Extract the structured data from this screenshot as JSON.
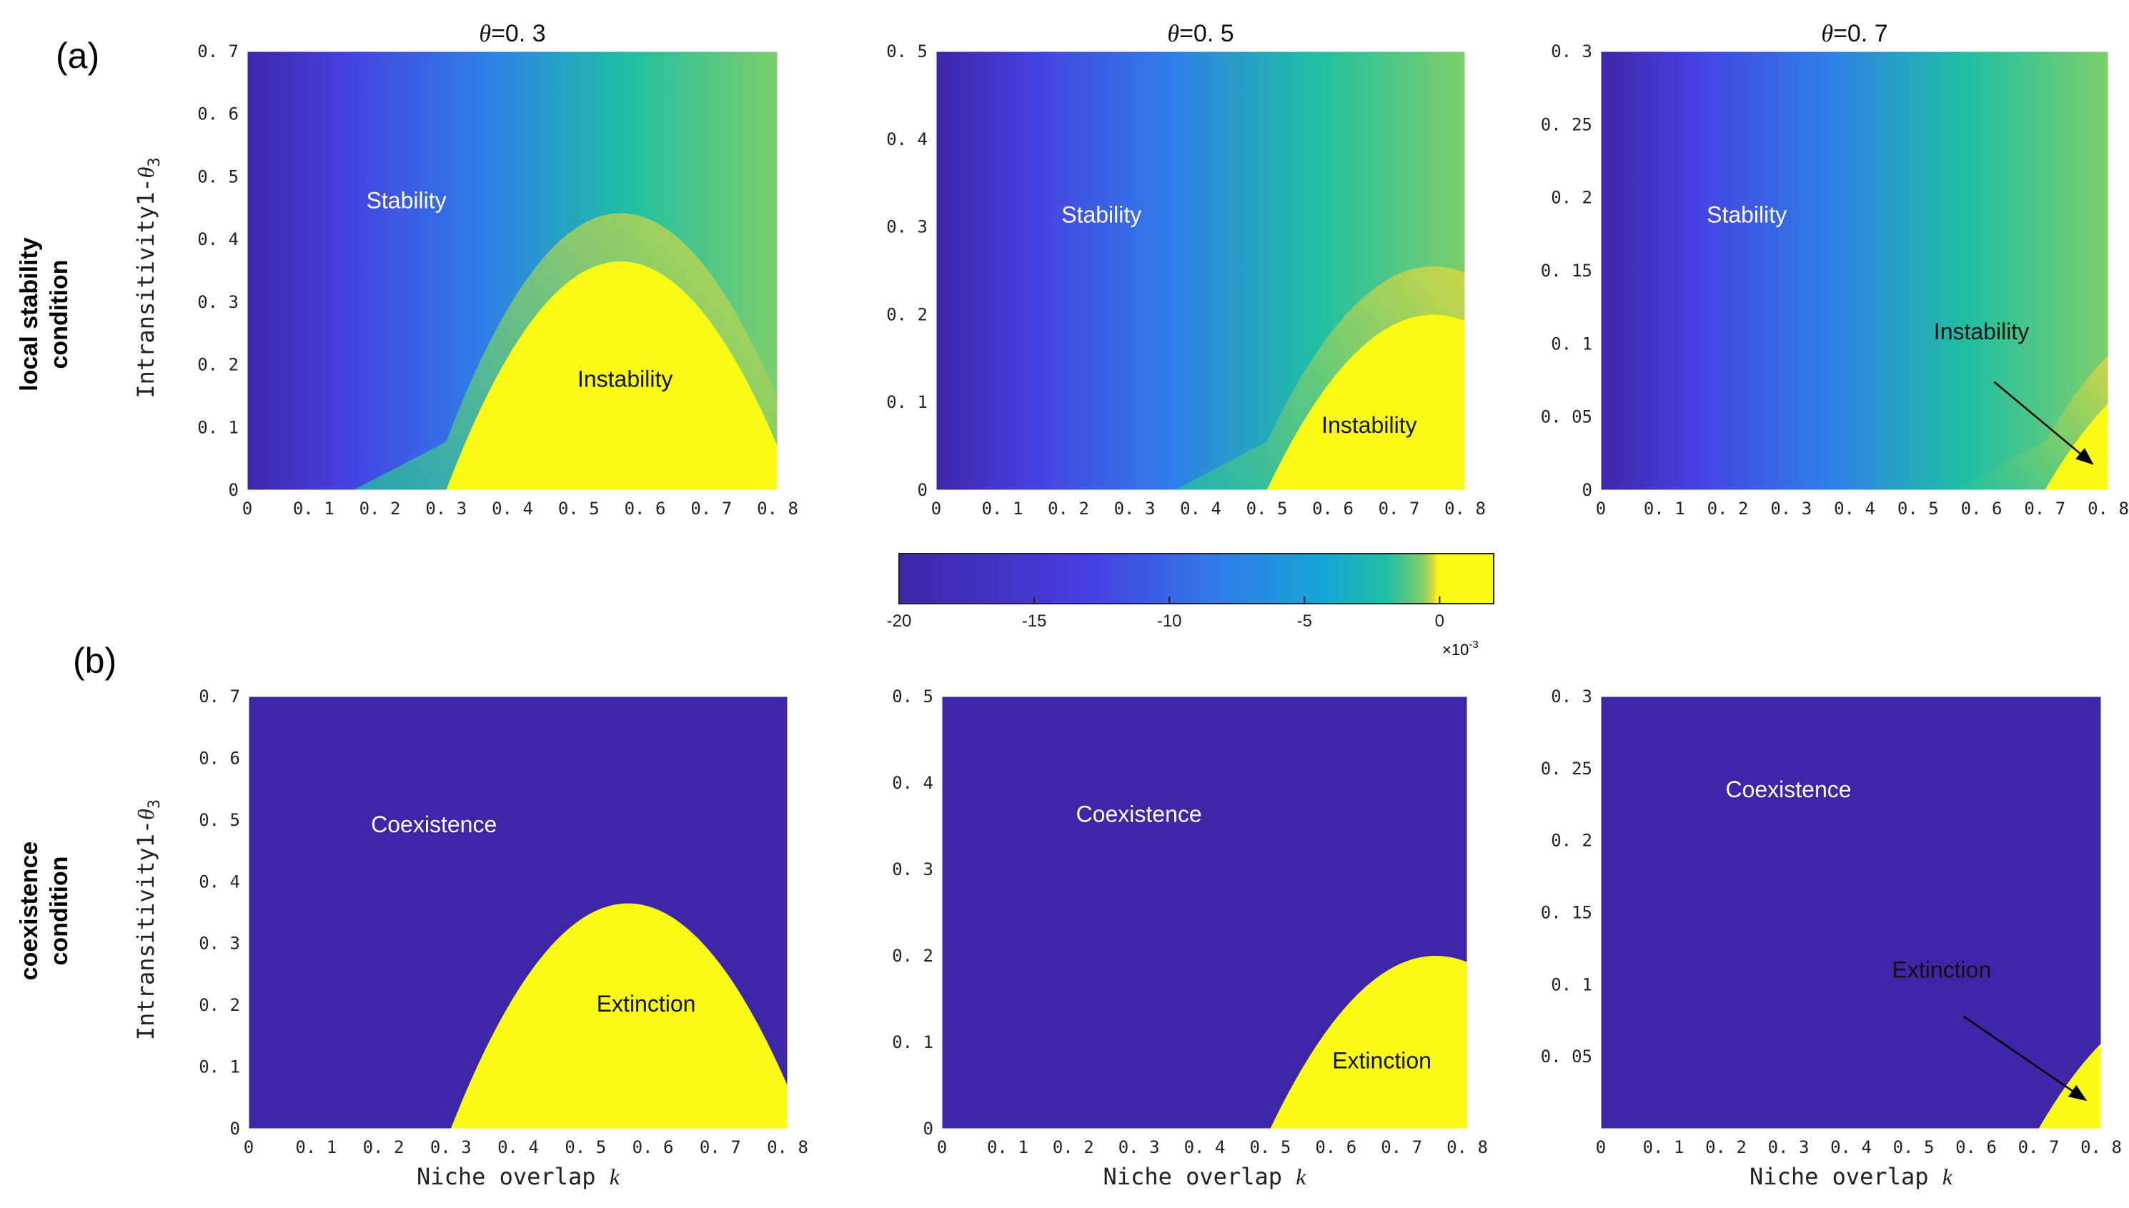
{
  "figure": {
    "panel_a_label": "(a)",
    "panel_b_label": "(b)",
    "row_a_title": [
      "local stability",
      "condition"
    ],
    "row_b_title": [
      "coexistence",
      "condition"
    ],
    "y_axis_label": "Intransitivity1-",
    "y_axis_symbol": "θ",
    "y_axis_subscript": "3",
    "x_axis_label": "Niche overlap ",
    "x_axis_symbol": "k"
  },
  "colors": {
    "dark": "#3d26a8",
    "yellow": "#f9fb15",
    "colormap": [
      "#3e26a8",
      "#4640e0",
      "#2f7fe9",
      "#16a6d5",
      "#1fbfa3",
      "#7ccf6b",
      "#e7d73b",
      "#f9fb15"
    ]
  },
  "chart_data": [
    {
      "type": "heatmap",
      "row": "a",
      "title_symbol": "θ",
      "title_value": "=0. 3",
      "theta": 0.3,
      "xlim": [
        0,
        0.8
      ],
      "ylim": [
        0,
        0.7
      ],
      "xticks": [
        "0",
        "0. 1",
        "0. 2",
        "0. 3",
        "0. 4",
        "0. 5",
        "0. 6",
        "0. 7",
        "0. 8"
      ],
      "yticks": [
        "0",
        "0. 1",
        "0. 2",
        "0. 3",
        "0. 4",
        "0. 5",
        "0. 6",
        "0. 7"
      ],
      "region_stable": "Stability",
      "region_unstable": "Instability",
      "stable_label_at": [
        0.24,
        0.45
      ],
      "unstable_label_at": [
        0.57,
        0.165
      ],
      "arrow": null
    },
    {
      "type": "heatmap",
      "row": "a",
      "title_symbol": "θ",
      "title_value": "=0. 5",
      "theta": 0.5,
      "xlim": [
        0,
        0.8
      ],
      "ylim": [
        0,
        0.5
      ],
      "xticks": [
        "0",
        "0. 1",
        "0. 2",
        "0. 3",
        "0. 4",
        "0. 5",
        "0. 6",
        "0. 7",
        "0. 8"
      ],
      "yticks": [
        "0",
        "0. 1",
        "0. 2",
        "0. 3",
        "0. 4",
        "0. 5"
      ],
      "region_stable": "Stability",
      "region_unstable": "Instability",
      "stable_label_at": [
        0.25,
        0.305
      ],
      "unstable_label_at": [
        0.655,
        0.065
      ],
      "arrow": null
    },
    {
      "type": "heatmap",
      "row": "a",
      "title_symbol": "θ",
      "title_value": "=0. 7",
      "theta": 0.7,
      "xlim": [
        0,
        0.8
      ],
      "ylim": [
        0,
        0.3
      ],
      "xticks": [
        "0",
        "0. 1",
        "0. 2",
        "0. 3",
        "0. 4",
        "0. 5",
        "0. 6",
        "0. 7",
        "0. 8"
      ],
      "yticks": [
        "0",
        "0. 05",
        "0. 1",
        "0. 15",
        "0. 2",
        "0. 25",
        "0. 3"
      ],
      "region_stable": "Stability",
      "region_unstable": "Instability",
      "stable_label_at": [
        0.23,
        0.183
      ],
      "unstable_label_at": [
        0.6,
        0.103
      ],
      "arrow": [
        [
          0.62,
          0.074
        ],
        [
          0.775,
          0.018
        ]
      ]
    },
    {
      "type": "heatmap",
      "row": "b",
      "title_symbol": "",
      "title_value": "",
      "theta": 0.3,
      "xlim": [
        0,
        0.8
      ],
      "ylim": [
        0,
        0.7
      ],
      "xticks": [
        "0",
        "0. 1",
        "0. 2",
        "0. 3",
        "0. 4",
        "0. 5",
        "0. 6",
        "0. 7",
        "0. 8"
      ],
      "yticks": [
        "0",
        "0. 1",
        "0. 2",
        "0. 3",
        "0. 4",
        "0. 5",
        "0. 6",
        "0. 7"
      ],
      "region_stable": "Coexistence",
      "region_unstable": "Extinction",
      "stable_label_at": [
        0.275,
        0.48
      ],
      "unstable_label_at": [
        0.59,
        0.19
      ],
      "arrow": null
    },
    {
      "type": "heatmap",
      "row": "b",
      "title_symbol": "",
      "title_value": "",
      "theta": 0.5,
      "xlim": [
        0,
        0.8
      ],
      "ylim": [
        0,
        0.5
      ],
      "xticks": [
        "0",
        "0. 1",
        "0. 2",
        "0. 3",
        "0. 4",
        "0. 5",
        "0. 6",
        "0. 7",
        "0. 8"
      ],
      "yticks": [
        "0",
        "0. 1",
        "0. 2",
        "0. 3",
        "0. 4",
        "0. 5"
      ],
      "region_stable": "Coexistence",
      "region_unstable": "Extinction",
      "stable_label_at": [
        0.3,
        0.355
      ],
      "unstable_label_at": [
        0.67,
        0.07
      ],
      "arrow": null
    },
    {
      "type": "heatmap",
      "row": "b",
      "title_symbol": "",
      "title_value": "",
      "theta": 0.7,
      "xlim": [
        0,
        0.8
      ],
      "ylim": [
        0,
        0.3
      ],
      "xticks": [
        "0",
        "0. 1",
        "0. 2",
        "0. 3",
        "0. 4",
        "0. 5",
        "0. 6",
        "0. 7",
        "0. 8"
      ],
      "yticks": [
        "0. 05",
        "0. 1",
        "0. 15",
        "0. 2",
        "0. 25",
        "0. 3"
      ],
      "region_stable": "Coexistence",
      "region_unstable": "Extinction",
      "stable_label_at": [
        0.3,
        0.23
      ],
      "unstable_label_at": [
        0.545,
        0.105
      ],
      "arrow": [
        [
          0.58,
          0.078
        ],
        [
          0.775,
          0.02
        ]
      ]
    }
  ],
  "colorbar": {
    "ticks": [
      "-20",
      "-15",
      "-10",
      "-5",
      "0"
    ],
    "tick_values": [
      -20,
      -15,
      -10,
      -5,
      0
    ],
    "range": [
      -20,
      2
    ],
    "multiplier": "×10",
    "exponent": "-3"
  }
}
